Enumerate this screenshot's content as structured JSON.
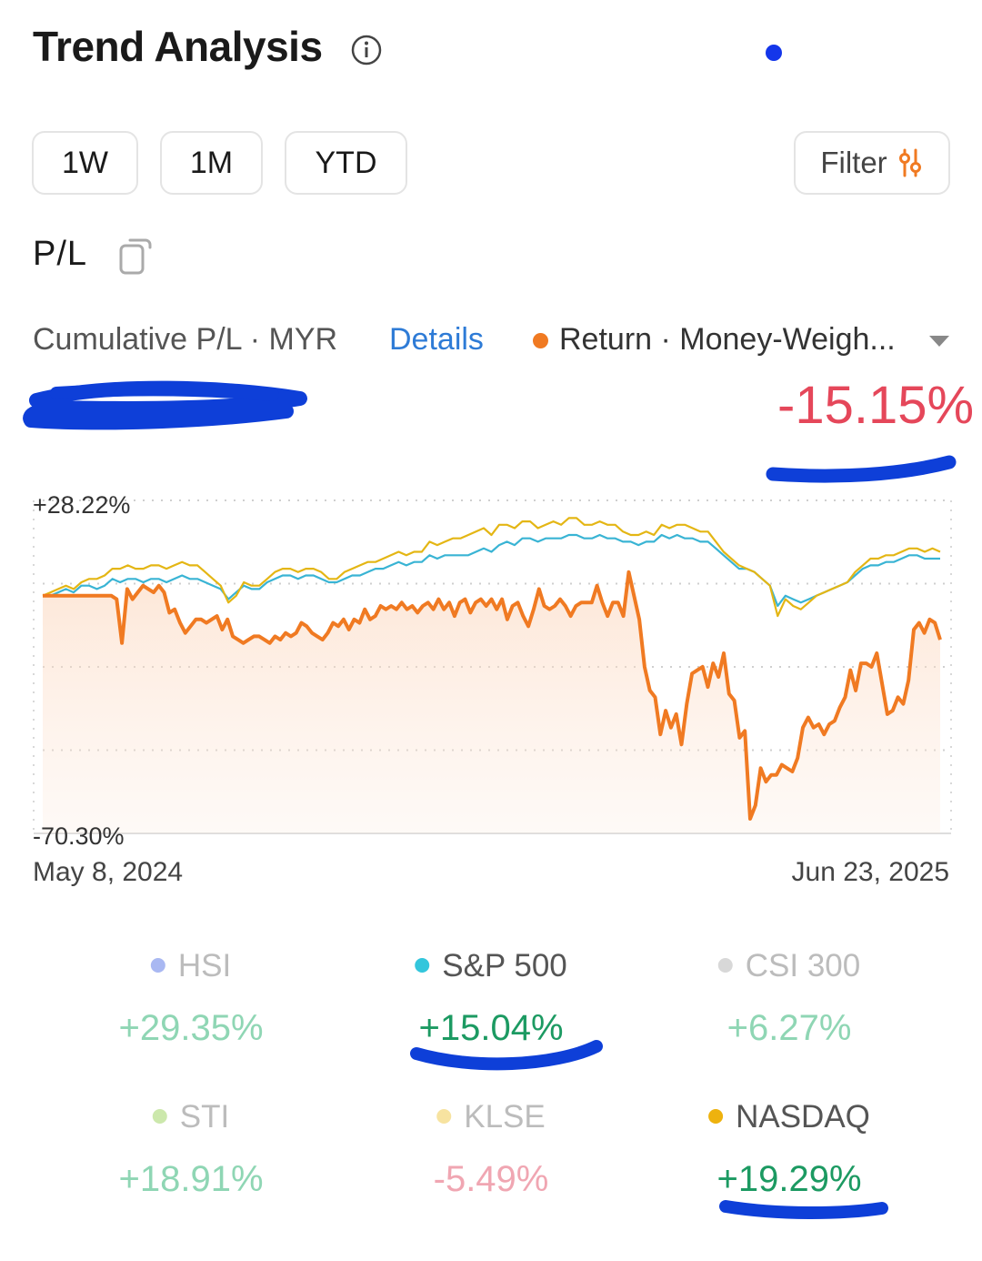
{
  "header": {
    "title": "Trend Analysis",
    "info_icon": "info-icon"
  },
  "periods": [
    "1W",
    "1M",
    "YTD"
  ],
  "filter": {
    "label": "Filter",
    "icon": "sliders-icon"
  },
  "section": {
    "label": "P/L",
    "icon": "copy-icon"
  },
  "summary": {
    "left_label": "Cumulative P/L · MYR",
    "details_label": "Details",
    "right_label": "Return · Money-Weigh...",
    "return_value": "-15.15%"
  },
  "chart_data": {
    "type": "line",
    "x_start": "May 8, 2024",
    "x_end": "Jun 23, 2025",
    "y_max_label": "+28.22%",
    "y_min_label": "-70.30%",
    "ylim": [
      -70.3,
      28.22
    ],
    "gridlines": 4,
    "series": [
      {
        "color": "#f07a22",
        "area": true,
        "values": [
          0,
          0,
          0,
          0,
          0,
          0,
          0,
          0,
          0,
          0,
          0,
          0,
          0,
          0,
          -1,
          -14,
          2,
          -1,
          1,
          3,
          2,
          1,
          3,
          1,
          -5,
          -4,
          -8,
          -11,
          -9,
          -7,
          -7,
          -8,
          -7,
          -6,
          -10,
          -7,
          -12,
          -13,
          -14,
          -13,
          -12,
          -12,
          -13,
          -14,
          -12,
          -13,
          -11,
          -12,
          -11,
          -8,
          -9,
          -11,
          -12,
          -13,
          -11,
          -8,
          -9,
          -7,
          -10,
          -7,
          -8,
          -4,
          -7,
          -6,
          -3,
          -4,
          -3,
          -4,
          -2,
          -4,
          -3,
          -5,
          -3,
          -2,
          -4,
          -1,
          -4,
          -2,
          -6,
          -2,
          -1,
          -5,
          -2,
          -1,
          -3,
          -1,
          -4,
          -1,
          -7,
          -3,
          -2,
          -6,
          -9,
          -4,
          2,
          -3,
          -4,
          -3,
          -1,
          -3,
          -6,
          -3,
          -2,
          -2,
          -2,
          3,
          -2,
          -6,
          -2,
          -2,
          -6,
          7,
          0,
          -7,
          -21,
          -28,
          -30,
          -41,
          -34,
          -39,
          -35,
          -44,
          -32,
          -23,
          -22,
          -21,
          -27,
          -20,
          -24,
          -17,
          -29,
          -31,
          -42,
          -40,
          -66,
          -62,
          -51,
          -55,
          -53,
          -53,
          -50,
          -51,
          -52,
          -48,
          -39,
          -36,
          -39,
          -38,
          -41,
          -38,
          -37,
          -33,
          -30,
          -22,
          -28,
          -20,
          -20,
          -21,
          -17,
          -26,
          -35,
          -34,
          -30,
          -32,
          -25,
          -10,
          -8,
          -11,
          -7,
          -8,
          -13
        ]
      },
      {
        "name": "S&P 500",
        "color": "#39b4d4",
        "values": [
          0,
          0,
          1,
          2,
          1,
          3,
          3,
          2,
          3,
          5,
          4,
          5,
          5,
          4,
          5,
          5,
          4,
          5,
          6,
          5,
          5,
          4,
          3,
          2,
          -1,
          1,
          3,
          2,
          2,
          4,
          5,
          6,
          6,
          5,
          6,
          6,
          5,
          4,
          4,
          5,
          6,
          6,
          7,
          8,
          8,
          9,
          10,
          9,
          10,
          10,
          12,
          11,
          12,
          12,
          12,
          12,
          13,
          14,
          13,
          15,
          16,
          15,
          17,
          17,
          16,
          17,
          17,
          17,
          18,
          18,
          17,
          17,
          18,
          17,
          17,
          16,
          16,
          15,
          16,
          16,
          18,
          17,
          18,
          17,
          17,
          16,
          16,
          14,
          12,
          10,
          8,
          8,
          7,
          5,
          3,
          -3,
          0,
          -1,
          -2,
          -1,
          0,
          1,
          2,
          3,
          4,
          6,
          8,
          9,
          9,
          10,
          10,
          11,
          12,
          12,
          11,
          11,
          11
        ]
      },
      {
        "name": "NASDAQ",
        "color": "#e4b614",
        "values": [
          0,
          1,
          2,
          3,
          2,
          4,
          5,
          5,
          6,
          8,
          8,
          9,
          8,
          8,
          9,
          9,
          8,
          9,
          10,
          9,
          9,
          7,
          5,
          3,
          -2,
          0,
          4,
          3,
          3,
          5,
          7,
          8,
          8,
          7,
          8,
          8,
          7,
          5,
          5,
          7,
          8,
          9,
          10,
          10,
          11,
          12,
          13,
          12,
          13,
          13,
          16,
          15,
          16,
          17,
          17,
          18,
          19,
          20,
          18,
          21,
          21,
          20,
          22,
          22,
          20,
          21,
          22,
          21,
          23,
          23,
          21,
          21,
          22,
          21,
          21,
          19,
          18,
          18,
          19,
          18,
          21,
          20,
          21,
          21,
          20,
          19,
          19,
          16,
          13,
          11,
          9,
          8,
          7,
          5,
          3,
          -6,
          -1,
          -3,
          -4,
          -2,
          0,
          1,
          2,
          3,
          4,
          7,
          9,
          11,
          11,
          12,
          12,
          13,
          14,
          14,
          13,
          14,
          13
        ]
      }
    ]
  },
  "benchmarks": [
    {
      "name": "HSI",
      "value": "+29.35%",
      "dot_color": "#a9b8f2",
      "name_color": "#bcbcbc",
      "value_color": "#8fd6b4"
    },
    {
      "name": "S&P 500",
      "value": "+15.04%",
      "dot_color": "#33c6dc",
      "name_color": "#555555",
      "value_color": "#1c9a62"
    },
    {
      "name": "CSI 300",
      "value": "+6.27%",
      "dot_color": "#d8d8d8",
      "name_color": "#bcbcbc",
      "value_color": "#8fd6b4"
    },
    {
      "name": "STI",
      "value": "+18.91%",
      "dot_color": "#cce8ac",
      "name_color": "#bcbcbc",
      "value_color": "#8fd6b4"
    },
    {
      "name": "KLSE",
      "value": "-5.49%",
      "dot_color": "#f7e3a0",
      "name_color": "#bcbcbc",
      "value_color": "#f0a6b2"
    },
    {
      "name": "NASDAQ",
      "value": "+19.29%",
      "dot_color": "#eeb20e",
      "name_color": "#555555",
      "value_color": "#1c9a62"
    }
  ]
}
